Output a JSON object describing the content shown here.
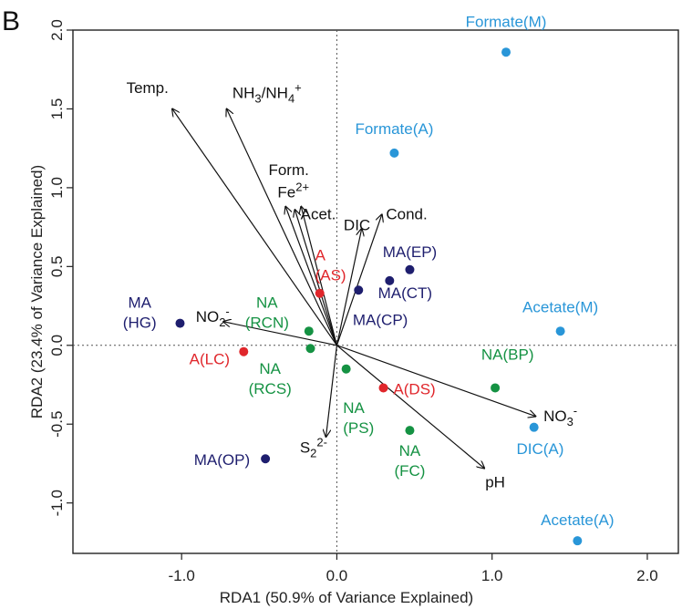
{
  "panel_label": "B",
  "chart_data": {
    "type": "scatter",
    "title": "",
    "xlabel": "RDA1 (50.9% of Variance Explained)",
    "ylabel": "RDA2 (23.4% of Variance Explained)",
    "xlim": [
      -1.7,
      2.2
    ],
    "ylim": [
      -1.32,
      2.0
    ],
    "xticks": [
      {
        "v": -1.0,
        "label": "-1.0"
      },
      {
        "v": 0.0,
        "label": "0.0"
      },
      {
        "v": 1.0,
        "label": "1.0"
      },
      {
        "v": 2.0,
        "label": "2.0"
      }
    ],
    "yticks": [
      {
        "v": -1.0,
        "label": "-1.0"
      },
      {
        "v": -0.5,
        "label": "-0.5"
      },
      {
        "v": 0.0,
        "label": "0.0"
      },
      {
        "v": 0.5,
        "label": "0.5"
      },
      {
        "v": 1.0,
        "label": "1.0"
      },
      {
        "v": 1.5,
        "label": "1.5"
      },
      {
        "v": 2.0,
        "label": "2.0"
      }
    ],
    "zero_lines": true,
    "colors": {
      "MA": "#1e1e6e",
      "A": "#e0262b",
      "NA": "#159243",
      "substrate": "#2996d8",
      "vector": "#111111"
    },
    "points": [
      {
        "group": "substrate",
        "lines": [
          "Formate(M)"
        ],
        "x": 1.09,
        "y": 1.86,
        "tdx": 0.0,
        "tdy": 0.16,
        "anchor": "middle"
      },
      {
        "group": "substrate",
        "lines": [
          "Formate(A)"
        ],
        "x": 0.37,
        "y": 1.22,
        "tdx": 0.0,
        "tdy": 0.12,
        "anchor": "middle"
      },
      {
        "group": "substrate",
        "lines": [
          "Acetate(M)"
        ],
        "x": 1.44,
        "y": 0.09,
        "tdx": 0.0,
        "tdy": 0.12,
        "anchor": "middle"
      },
      {
        "group": "substrate",
        "lines": [
          "DIC(A)"
        ],
        "x": 1.27,
        "y": -0.52,
        "tdx": 0.04,
        "tdy": -0.17,
        "anchor": "middle"
      },
      {
        "group": "substrate",
        "lines": [
          "Acetate(A)"
        ],
        "x": 1.55,
        "y": -1.24,
        "tdx": 0.0,
        "tdy": 0.1,
        "anchor": "middle"
      },
      {
        "group": "MA",
        "lines": [
          "MA(EP)"
        ],
        "x": 0.47,
        "y": 0.48,
        "tdx": 0.0,
        "tdy": 0.08,
        "anchor": "middle"
      },
      {
        "group": "MA",
        "lines": [
          "MA(CT)"
        ],
        "x": 0.34,
        "y": 0.41,
        "tdx": 0.1,
        "tdy": -0.11,
        "anchor": "middle"
      },
      {
        "group": "MA",
        "lines": [
          "MA(CP)"
        ],
        "x": 0.14,
        "y": 0.35,
        "tdx": 0.14,
        "tdy": -0.22,
        "anchor": "middle"
      },
      {
        "group": "MA",
        "lines": [
          "MA",
          "(HG)"
        ],
        "x": -1.01,
        "y": 0.14,
        "tdx": -0.26,
        "tdy": 0.1,
        "anchor": "middle"
      },
      {
        "group": "MA",
        "lines": [
          "MA(OP)"
        ],
        "x": -0.46,
        "y": -0.72,
        "tdx": -0.28,
        "tdy": -0.04,
        "anchor": "middle"
      },
      {
        "group": "A",
        "lines": [
          "A",
          "(AS)"
        ],
        "x": -0.11,
        "y": 0.33,
        "tdx": -0.03,
        "tdy": 0.21,
        "anchor": "start"
      },
      {
        "group": "A",
        "lines": [
          "A(LC)"
        ],
        "x": -0.6,
        "y": -0.04,
        "tdx": -0.22,
        "tdy": -0.08,
        "anchor": "middle"
      },
      {
        "group": "A",
        "lines": [
          "A(DS)"
        ],
        "x": 0.3,
        "y": -0.27,
        "tdx": 0.2,
        "tdy": -0.04,
        "anchor": "middle"
      },
      {
        "group": "NA",
        "lines": [
          "NA",
          "(RCN)"
        ],
        "x": -0.18,
        "y": 0.09,
        "tdx": -0.27,
        "tdy": 0.15,
        "anchor": "middle"
      },
      {
        "group": "NA",
        "lines": [
          "NA",
          "(RCS)"
        ],
        "x": -0.17,
        "y": -0.02,
        "tdx": -0.26,
        "tdy": -0.16,
        "anchor": "middle"
      },
      {
        "group": "NA",
        "lines": [
          "NA",
          "(PS)"
        ],
        "x": 0.06,
        "y": -0.15,
        "tdx": -0.02,
        "tdy": -0.28,
        "anchor": "start"
      },
      {
        "group": "NA",
        "lines": [
          "NA(BP)"
        ],
        "x": 1.02,
        "y": -0.27,
        "tdx": 0.08,
        "tdy": 0.18,
        "anchor": "middle"
      },
      {
        "group": "NA",
        "lines": [
          "NA",
          "(FC)"
        ],
        "x": 0.47,
        "y": -0.54,
        "tdx": 0.0,
        "tdy": -0.16,
        "anchor": "middle"
      }
    ],
    "vectors": [
      {
        "name": "Temp.",
        "x": -1.06,
        "y": 1.5,
        "lx": -1.22,
        "ly": 1.6,
        "sub": ""
      },
      {
        "name": "NH3/NH4+",
        "x": -0.71,
        "y": 1.5,
        "lx": -0.45,
        "ly": 1.57,
        "sub": ""
      },
      {
        "name": "Form.",
        "x": -0.33,
        "y": 0.88,
        "lx": -0.31,
        "ly": 1.08,
        "sub": ""
      },
      {
        "name": "Fe2+",
        "x": -0.27,
        "y": 0.86,
        "lx": -0.28,
        "ly": 0.94,
        "sub": ""
      },
      {
        "name": "Acet.",
        "x": -0.23,
        "y": 0.88,
        "lx": -0.12,
        "ly": 0.8,
        "sub": ""
      },
      {
        "name": "DIC",
        "x": 0.16,
        "y": 0.74,
        "lx": 0.13,
        "ly": 0.73,
        "sub": ""
      },
      {
        "name": "Cond.",
        "x": 0.29,
        "y": 0.83,
        "lx": 0.45,
        "ly": 0.8,
        "sub": ""
      },
      {
        "name": "NO2-",
        "x": -0.73,
        "y": 0.15,
        "lx": -0.8,
        "ly": 0.15,
        "sub": ""
      },
      {
        "name": "NO3-",
        "x": 1.28,
        "y": -0.45,
        "lx": 1.44,
        "ly": -0.48,
        "sub": ""
      },
      {
        "name": "pH",
        "x": 0.95,
        "y": -0.78,
        "lx": 1.02,
        "ly": -0.9,
        "sub": ""
      },
      {
        "name": "S22-",
        "x": -0.07,
        "y": -0.58,
        "lx": -0.15,
        "ly": -0.68,
        "sub": ""
      }
    ]
  }
}
